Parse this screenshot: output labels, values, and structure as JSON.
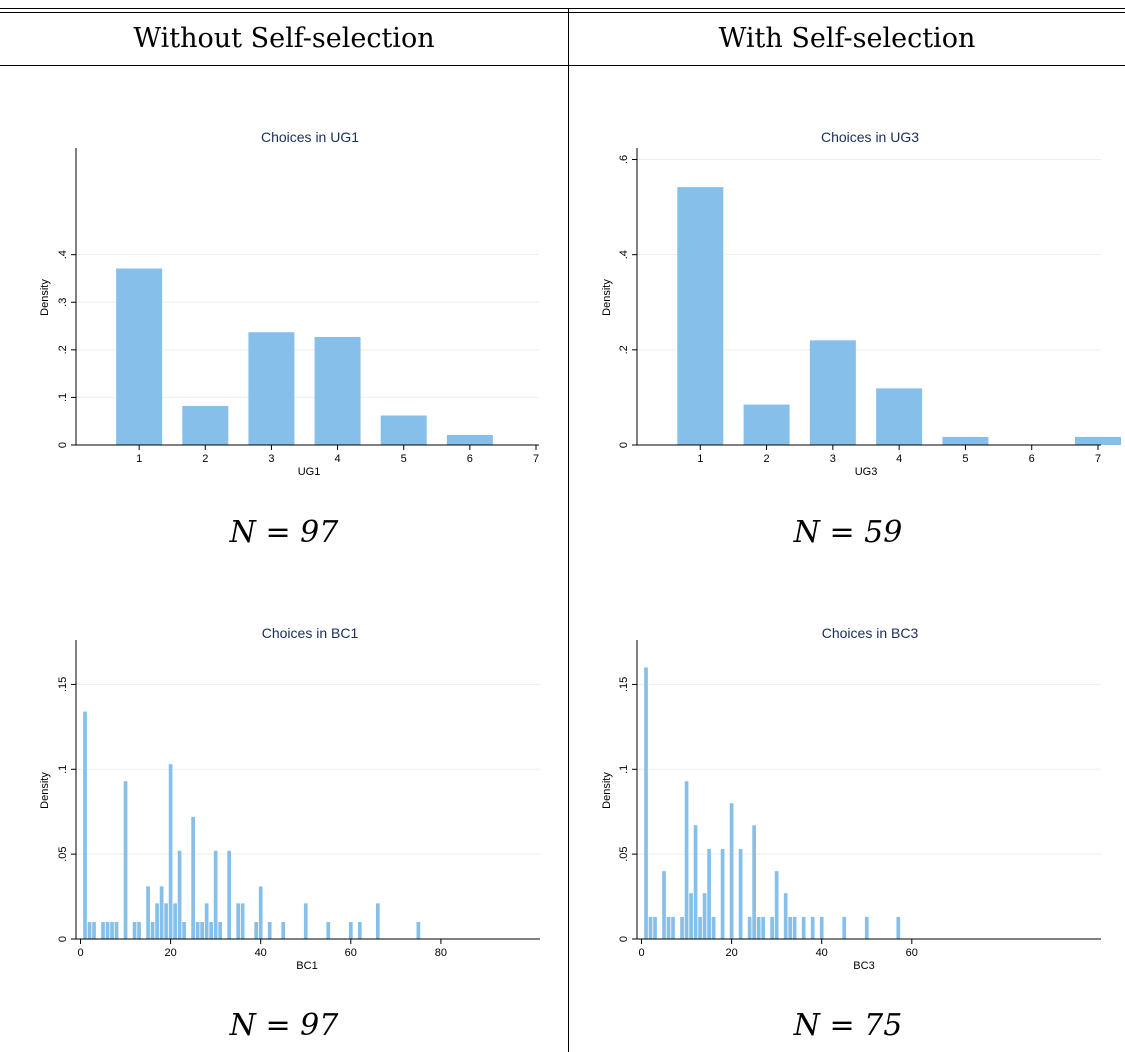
{
  "table": {
    "col_headers": [
      "Without Self-selection",
      "With Self-selection"
    ],
    "n_labels": [
      "N = 97",
      "N = 59",
      "N = 97",
      "N = 75"
    ]
  },
  "colors": {
    "bar": "#86c0ea",
    "title": "#1a2e5a",
    "grid": "#eeeeee"
  },
  "chart_data": [
    {
      "type": "bar",
      "title": "Choices in UG1",
      "xlabel": "UG1",
      "ylabel": "Density",
      "xlim": [
        0,
        7
      ],
      "ylim": [
        0,
        0.62
      ],
      "xticks": [
        "1",
        "2",
        "3",
        "4",
        "5",
        "6",
        "7"
      ],
      "yticks": [
        "0",
        ".1",
        ".2",
        ".3",
        ".4"
      ],
      "categories": [
        1,
        2,
        3,
        4,
        5,
        6
      ],
      "values": [
        0.371,
        0.082,
        0.237,
        0.227,
        0.062,
        0.021
      ]
    },
    {
      "type": "bar",
      "title": "Choices in UG3",
      "xlabel": "UG3",
      "ylabel": "Density",
      "xlim": [
        0,
        7
      ],
      "ylim": [
        0,
        0.62
      ],
      "xticks": [
        "1",
        "2",
        "3",
        "4",
        "5",
        "6",
        "7"
      ],
      "yticks": [
        "0",
        ".2",
        ".4",
        ".6"
      ],
      "categories": [
        1,
        2,
        3,
        4,
        5,
        7
      ],
      "values": [
        0.542,
        0.085,
        0.22,
        0.119,
        0.017,
        0.017
      ]
    },
    {
      "type": "bar",
      "title": "Choices in BC1",
      "xlabel": "BC1",
      "ylabel": "Density",
      "xlim": [
        -1,
        102
      ],
      "ylim": [
        0,
        0.175
      ],
      "xticks": [
        "0",
        "20",
        "40",
        "60",
        "80"
      ],
      "yticks": [
        "0",
        ".05",
        ".1",
        ".15"
      ],
      "bin_width": 1,
      "x": [
        1,
        2,
        3,
        5,
        6,
        7,
        8,
        10,
        12,
        13,
        15,
        16,
        17,
        18,
        19,
        20,
        21,
        22,
        23,
        25,
        26,
        27,
        28,
        29,
        30,
        31,
        33,
        35,
        36,
        39,
        40,
        42,
        45,
        50,
        55,
        60,
        62,
        66,
        75
      ],
      "values": [
        0.134,
        0.01,
        0.01,
        0.01,
        0.01,
        0.01,
        0.01,
        0.093,
        0.01,
        0.01,
        0.031,
        0.01,
        0.021,
        0.031,
        0.021,
        0.103,
        0.021,
        0.052,
        0.01,
        0.072,
        0.01,
        0.01,
        0.021,
        0.01,
        0.052,
        0.01,
        0.052,
        0.021,
        0.021,
        0.01,
        0.031,
        0.01,
        0.01,
        0.021,
        0.01,
        0.01,
        0.01,
        0.021,
        0.01
      ]
    },
    {
      "type": "bar",
      "title": "Choices in BC3",
      "xlabel": "BC3",
      "ylabel": "Density",
      "xlim": [
        -1,
        102
      ],
      "ylim": [
        0,
        0.175
      ],
      "xticks": [
        "0",
        "20",
        "40",
        "60"
      ],
      "yticks": [
        "0",
        ".05",
        ".1",
        ".15"
      ],
      "bin_width": 1,
      "x": [
        1,
        2,
        3,
        5,
        6,
        7,
        9,
        10,
        11,
        12,
        13,
        14,
        15,
        16,
        18,
        20,
        22,
        24,
        25,
        26,
        27,
        29,
        30,
        32,
        33,
        34,
        36,
        38,
        40,
        45,
        50,
        57
      ],
      "values": [
        0.16,
        0.013,
        0.013,
        0.04,
        0.013,
        0.013,
        0.013,
        0.093,
        0.027,
        0.067,
        0.013,
        0.027,
        0.053,
        0.013,
        0.053,
        0.08,
        0.053,
        0.013,
        0.067,
        0.013,
        0.013,
        0.013,
        0.04,
        0.027,
        0.013,
        0.013,
        0.013,
        0.013,
        0.013,
        0.013,
        0.013,
        0.013
      ]
    }
  ]
}
